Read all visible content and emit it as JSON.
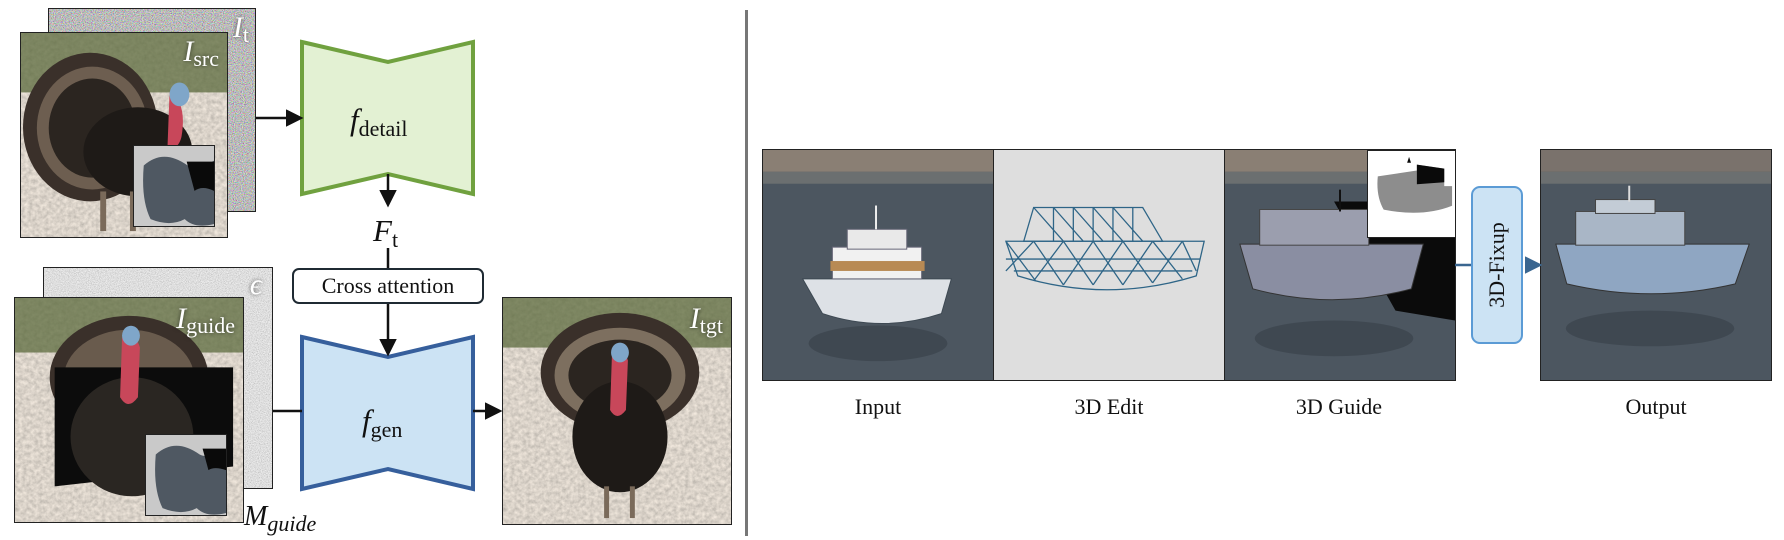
{
  "left_panel": {
    "source_stack": {
      "noise_label_main": "I",
      "noise_label_sub": "t",
      "image_label_main": "I",
      "image_label_sub": "src"
    },
    "detail_network": {
      "label_main": "f",
      "label_sub": "detail"
    },
    "feature": {
      "label_main": "F",
      "label_sub": "t"
    },
    "cross_attention": {
      "label": "Cross attention"
    },
    "guide_stack": {
      "noise_label": "ϵ",
      "image_label_main": "I",
      "image_label_sub": "guide",
      "mask_label_main": "M",
      "mask_label_sub": "guide"
    },
    "gen_network": {
      "label_main": "f",
      "label_sub": "gen"
    },
    "target": {
      "label_main": "I",
      "label_sub": "tgt"
    }
  },
  "right_panel": {
    "captions": {
      "input": "Input",
      "edit": "3D Edit",
      "guide": "3D Guide",
      "output": "Output"
    },
    "fixup": {
      "label": "3D-Fixup"
    }
  },
  "colors": {
    "detail_fill": "#e3f1d3",
    "detail_stroke": "#70a13f",
    "gen_fill": "#cce3f4",
    "gen_stroke": "#365f9c",
    "fixup_fill": "#cce3f4",
    "fixup_stroke": "#5b9bd5",
    "arrow": "#111111",
    "right_arrow": "#3a6690"
  }
}
